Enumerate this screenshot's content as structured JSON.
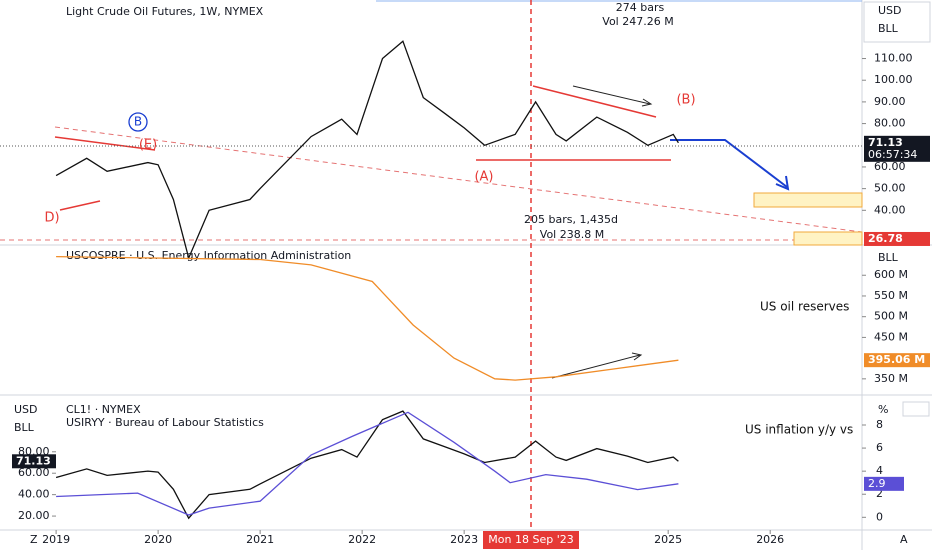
{
  "chart_data": [
    {
      "type": "line",
      "title": "Light Crude Oil Futures, 1W, NYMEX",
      "currency": "USD",
      "unit": "BLL",
      "x": [
        2019.0,
        2019.3,
        2019.5,
        2019.9,
        2020.0,
        2020.15,
        2020.3,
        2020.5,
        2020.9,
        2021.0,
        2021.5,
        2021.8,
        2021.95,
        2022.2,
        2022.4,
        2022.6,
        2022.8,
        2023.0,
        2023.2,
        2023.5,
        2023.7,
        2023.9,
        2024.0,
        2024.3,
        2024.6,
        2024.8,
        2025.05,
        2025.1
      ],
      "values": [
        56,
        64,
        58,
        62,
        61,
        45,
        18,
        40,
        45,
        50,
        74,
        82,
        75,
        110,
        118,
        92,
        85,
        78,
        70,
        75,
        90,
        75,
        72,
        83,
        76,
        70,
        75,
        71.13
      ],
      "color": "#111111",
      "xlim": [
        2018.45,
        2026.9
      ],
      "xticks": [
        2019,
        2020,
        2021,
        2022,
        2023,
        2025,
        2026
      ],
      "ylim": [
        24,
        137
      ],
      "yticks": [
        {
          "value": 40,
          "label": "40.00"
        },
        {
          "value": 50,
          "label": "50.00"
        },
        {
          "value": 60,
          "label": "60.00"
        },
        {
          "value": 80,
          "label": "80.00"
        },
        {
          "value": 90,
          "label": "90.00"
        },
        {
          "value": 100,
          "label": "100.00"
        },
        {
          "value": 110,
          "label": "110.00"
        }
      ],
      "annotations": [
        "274 bars",
        "Vol 247.26 M",
        "205 bars, 1,435d",
        "Vol 238.8 M",
        "(A)",
        "(B)",
        "B",
        "(E)",
        "D)"
      ],
      "price_tags": [
        {
          "value": 71.13,
          "label": "71.13"
        },
        {
          "value": 26.78,
          "label": "26.78"
        }
      ],
      "countdown": "06:57:34"
    },
    {
      "type": "line",
      "title": "USCOSPRE · U.S. Energy Information Administration",
      "unit": "BLL",
      "x": [
        2019.0,
        2021.0,
        2021.5,
        2022.1,
        2022.5,
        2022.9,
        2023.3,
        2023.5,
        2023.9,
        2024.5,
        2025.1
      ],
      "values": [
        645,
        638,
        625,
        585,
        480,
        400,
        350,
        347,
        355,
        375,
        395.06
      ],
      "color": "#f08c28",
      "xlim": [
        2018.45,
        2026.9
      ],
      "ylim": [
        311,
        673
      ],
      "yticks": [
        {
          "value": 350,
          "label": "350 M"
        },
        {
          "value": 450,
          "label": "450 M"
        },
        {
          "value": 500,
          "label": "500 M"
        },
        {
          "value": 550,
          "label": "550 M"
        },
        {
          "value": 600,
          "label": "600 M"
        }
      ],
      "annotations": [
        "US oil reserves"
      ],
      "price_tags": [
        {
          "value": 395.06,
          "label": "395.06 M"
        }
      ]
    },
    {
      "type": "line",
      "currency": "USD",
      "unit": "BLL",
      "series": [
        {
          "name": "CL1! · NYMEX",
          "color": "#111111",
          "x": [
            2019.0,
            2019.3,
            2019.5,
            2019.9,
            2020.0,
            2020.15,
            2020.3,
            2020.5,
            2020.9,
            2021.0,
            2021.5,
            2021.8,
            2021.95,
            2022.2,
            2022.4,
            2022.6,
            2022.8,
            2023.0,
            2023.2,
            2023.5,
            2023.7,
            2023.9,
            2024.0,
            2024.3,
            2024.6,
            2024.8,
            2025.05,
            2025.1
          ],
          "values": [
            56,
            64,
            58,
            62,
            61,
            45,
            18,
            40,
            45,
            50,
            74,
            82,
            75,
            110,
            118,
            92,
            85,
            78,
            70,
            75,
            90,
            75,
            72,
            83,
            76,
            70,
            75,
            71.13
          ]
        },
        {
          "name": "USIRYY · Bureau of Labour Statistics",
          "color": "#5b4fd6",
          "axis": "y2",
          "x": [
            2019.0,
            2019.8,
            2020.3,
            2020.5,
            2021.0,
            2021.5,
            2021.9,
            2022.45,
            2022.9,
            2023.3,
            2023.45,
            2023.8,
            2024.2,
            2024.7,
            2025.1
          ],
          "values": [
            1.8,
            2.1,
            0.2,
            0.8,
            1.4,
            5.4,
            7.0,
            9.1,
            6.5,
            4.0,
            3.0,
            3.7,
            3.3,
            2.4,
            2.9
          ]
        }
      ],
      "xlim": [
        2018.45,
        2026.9
      ],
      "ylim": [
        7,
        133
      ],
      "yticks": [
        {
          "value": 20,
          "label": "20.00"
        },
        {
          "value": 40,
          "label": "40.00"
        },
        {
          "value": 60,
          "label": "60.00"
        },
        {
          "value": 80,
          "label": "80.00"
        }
      ],
      "y2lim": [
        -1.1,
        10.6
      ],
      "y2ticks": [
        0,
        2,
        4,
        6,
        8
      ],
      "y2label": "%",
      "annotations": [
        "US inflation y/y vs"
      ],
      "price_tags": [
        {
          "value": 71.13,
          "label": "71.13"
        }
      ],
      "y2_tag": {
        "value": 2.9,
        "label": "2.9"
      }
    }
  ],
  "ui": {
    "crosshair_date": "Mon 18 Sep '23",
    "corner_left": "Z",
    "corner_right": "A"
  }
}
